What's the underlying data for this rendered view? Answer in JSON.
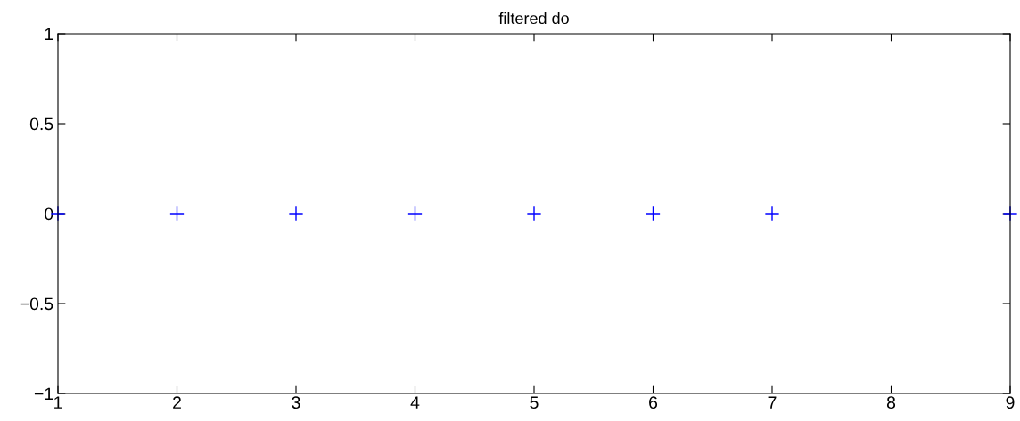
{
  "chart_data": {
    "type": "scatter",
    "title": "filtered do",
    "x": [
      1,
      2,
      3,
      4,
      5,
      6,
      7,
      9
    ],
    "series": [
      {
        "color": "#0000ff",
        "values": [
          0,
          0,
          0,
          0,
          0,
          0,
          0,
          0
        ]
      }
    ],
    "marker": "cross",
    "xlim": [
      1,
      9
    ],
    "xticks": [
      1,
      2,
      3,
      4,
      5,
      6,
      7,
      8,
      9
    ],
    "ylim": [
      -1,
      1
    ],
    "yticks": [
      -1,
      -0.5,
      0,
      0.5,
      1
    ],
    "grid": false,
    "legend": false
  }
}
